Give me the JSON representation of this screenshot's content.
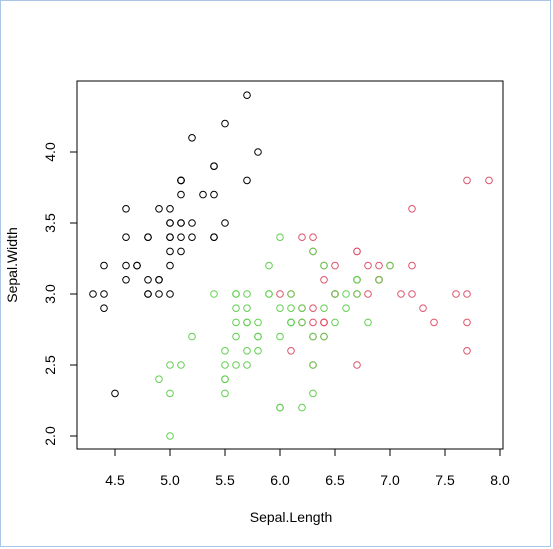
{
  "chart_data": {
    "type": "scatter",
    "title": "",
    "xlabel": "Sepal.Length",
    "ylabel": "Sepal.Width",
    "xlim": [
      4.2,
      8.0
    ],
    "ylim": [
      1.9,
      4.5
    ],
    "xticks": [
      "4.5",
      "5.0",
      "5.5",
      "6.0",
      "6.5",
      "7.0",
      "7.5",
      "8.0"
    ],
    "yticks": [
      "2.0",
      "2.5",
      "3.0",
      "3.5",
      "4.0"
    ],
    "grid": false,
    "legend": "none",
    "series": [
      {
        "color": "#000000",
        "points": [
          [
            5.1,
            3.5
          ],
          [
            4.9,
            3.0
          ],
          [
            4.7,
            3.2
          ],
          [
            4.6,
            3.1
          ],
          [
            5.0,
            3.6
          ],
          [
            5.4,
            3.9
          ],
          [
            4.6,
            3.4
          ],
          [
            5.0,
            3.4
          ],
          [
            4.4,
            2.9
          ],
          [
            4.9,
            3.1
          ],
          [
            5.4,
            3.7
          ],
          [
            4.8,
            3.4
          ],
          [
            4.8,
            3.0
          ],
          [
            4.3,
            3.0
          ],
          [
            5.8,
            4.0
          ],
          [
            5.7,
            4.4
          ],
          [
            5.4,
            3.9
          ],
          [
            5.1,
            3.5
          ],
          [
            5.7,
            3.8
          ],
          [
            5.1,
            3.8
          ],
          [
            5.4,
            3.4
          ],
          [
            5.1,
            3.7
          ],
          [
            4.6,
            3.6
          ],
          [
            5.1,
            3.3
          ],
          [
            4.8,
            3.4
          ],
          [
            5.0,
            3.0
          ],
          [
            5.0,
            3.4
          ],
          [
            5.2,
            3.5
          ],
          [
            5.2,
            3.4
          ],
          [
            4.7,
            3.2
          ],
          [
            4.8,
            3.1
          ],
          [
            5.4,
            3.4
          ],
          [
            5.2,
            4.1
          ],
          [
            5.5,
            4.2
          ],
          [
            4.9,
            3.1
          ],
          [
            5.0,
            3.2
          ],
          [
            5.5,
            3.5
          ],
          [
            4.9,
            3.6
          ],
          [
            4.4,
            3.0
          ],
          [
            5.1,
            3.4
          ],
          [
            5.0,
            3.5
          ],
          [
            4.5,
            2.3
          ],
          [
            4.4,
            3.2
          ],
          [
            5.0,
            3.5
          ],
          [
            5.1,
            3.8
          ],
          [
            4.8,
            3.0
          ],
          [
            5.1,
            3.8
          ],
          [
            4.6,
            3.2
          ],
          [
            5.3,
            3.7
          ],
          [
            5.0,
            3.3
          ]
        ]
      },
      {
        "color": "#df536b",
        "points": [
          [
            7.0,
            3.2
          ],
          [
            6.4,
            3.2
          ],
          [
            6.9,
            3.1
          ],
          [
            6.5,
            3.0
          ],
          [
            6.3,
            3.3
          ],
          [
            7.1,
            3.0
          ],
          [
            6.3,
            2.9
          ],
          [
            6.7,
            2.5
          ],
          [
            7.2,
            3.6
          ],
          [
            6.5,
            3.2
          ],
          [
            6.4,
            2.7
          ],
          [
            6.8,
            3.0
          ],
          [
            6.4,
            2.8
          ],
          [
            6.5,
            3.0
          ],
          [
            7.7,
            3.8
          ],
          [
            7.7,
            2.6
          ],
          [
            6.9,
            3.2
          ],
          [
            7.7,
            2.8
          ],
          [
            6.3,
            2.7
          ],
          [
            6.7,
            3.3
          ],
          [
            7.2,
            3.2
          ],
          [
            6.2,
            2.8
          ],
          [
            6.1,
            3.0
          ],
          [
            6.4,
            2.8
          ],
          [
            7.2,
            3.0
          ],
          [
            7.4,
            2.8
          ],
          [
            7.9,
            3.8
          ],
          [
            6.4,
            2.8
          ],
          [
            6.3,
            2.8
          ],
          [
            6.1,
            2.6
          ],
          [
            7.7,
            3.0
          ],
          [
            6.3,
            3.4
          ],
          [
            6.4,
            3.1
          ],
          [
            6.0,
            3.0
          ],
          [
            6.9,
            3.1
          ],
          [
            6.7,
            3.1
          ],
          [
            6.9,
            3.1
          ],
          [
            6.8,
            3.2
          ],
          [
            6.7,
            3.3
          ],
          [
            6.7,
            3.0
          ],
          [
            6.3,
            2.5
          ],
          [
            6.5,
            3.0
          ],
          [
            6.2,
            3.4
          ],
          [
            7.6,
            3.0
          ],
          [
            7.3,
            2.9
          ],
          [
            6.2,
            2.9
          ]
        ]
      },
      {
        "color": "#61d04f",
        "points": [
          [
            6.9,
            3.1
          ],
          [
            5.5,
            2.3
          ],
          [
            6.5,
            2.8
          ],
          [
            5.7,
            2.8
          ],
          [
            6.3,
            3.3
          ],
          [
            4.9,
            2.4
          ],
          [
            6.6,
            2.9
          ],
          [
            5.2,
            2.7
          ],
          [
            5.0,
            2.0
          ],
          [
            5.9,
            3.0
          ],
          [
            6.0,
            2.2
          ],
          [
            6.1,
            2.9
          ],
          [
            5.6,
            2.9
          ],
          [
            6.7,
            3.1
          ],
          [
            5.6,
            3.0
          ],
          [
            5.8,
            2.7
          ],
          [
            6.2,
            2.2
          ],
          [
            5.6,
            2.5
          ],
          [
            5.9,
            3.2
          ],
          [
            6.1,
            2.8
          ],
          [
            6.3,
            2.5
          ],
          [
            6.1,
            2.8
          ],
          [
            6.4,
            2.9
          ],
          [
            6.6,
            3.0
          ],
          [
            6.8,
            2.8
          ],
          [
            6.7,
            3.0
          ],
          [
            6.0,
            2.9
          ],
          [
            5.7,
            2.6
          ],
          [
            5.5,
            2.4
          ],
          [
            5.5,
            2.4
          ],
          [
            5.8,
            2.7
          ],
          [
            6.0,
            2.7
          ],
          [
            5.4,
            3.0
          ],
          [
            6.0,
            3.4
          ],
          [
            6.7,
            3.1
          ],
          [
            6.3,
            2.3
          ],
          [
            5.6,
            3.0
          ],
          [
            5.5,
            2.5
          ],
          [
            5.5,
            2.6
          ],
          [
            6.1,
            3.0
          ],
          [
            5.8,
            2.6
          ],
          [
            5.0,
            2.3
          ],
          [
            5.6,
            2.7
          ],
          [
            5.7,
            3.0
          ],
          [
            5.7,
            2.9
          ],
          [
            6.2,
            2.9
          ],
          [
            5.1,
            2.5
          ],
          [
            5.7,
            2.8
          ],
          [
            6.0,
            2.2
          ],
          [
            5.8,
            2.8
          ],
          [
            6.3,
            2.7
          ],
          [
            5.6,
            2.8
          ],
          [
            5.0,
            2.5
          ],
          [
            6.2,
            2.8
          ],
          [
            5.7,
            2.5
          ],
          [
            6.5,
            3.0
          ],
          [
            5.9,
            3.0
          ],
          [
            6.1,
            2.8
          ],
          [
            6.4,
            3.2
          ],
          [
            7.0,
            3.2
          ],
          [
            6.4,
            2.7
          ]
        ]
      }
    ]
  }
}
